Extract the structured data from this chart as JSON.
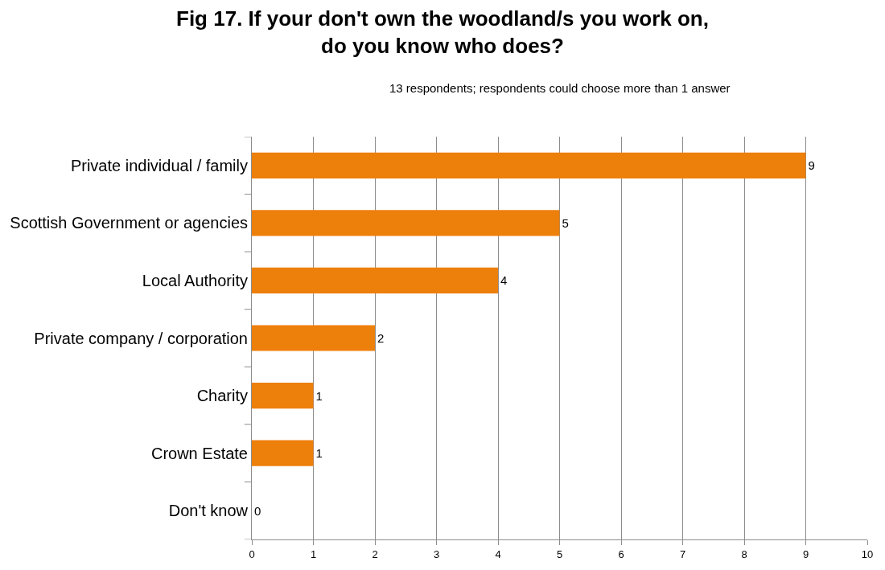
{
  "chart_data": {
    "type": "bar",
    "orientation": "horizontal",
    "title": "Fig 17. If your don't own the woodland/s you work on,\ndo you know who does?",
    "subtitle": "13 respondents; respondents could choose more than 1 answer",
    "categories": [
      "Private individual / family",
      "Scottish Government or agencies",
      "Local Authority",
      "Private company / corporation",
      "Charity",
      "Crown Estate",
      "Don't know"
    ],
    "values": [
      9,
      5,
      4,
      2,
      1,
      1,
      0
    ],
    "color": "#ed7f0b",
    "xlim": [
      0,
      10
    ],
    "xticks": [
      0,
      1,
      2,
      3,
      4,
      5,
      6,
      7,
      8,
      9,
      10
    ],
    "grid": "x",
    "data_labels": true
  }
}
